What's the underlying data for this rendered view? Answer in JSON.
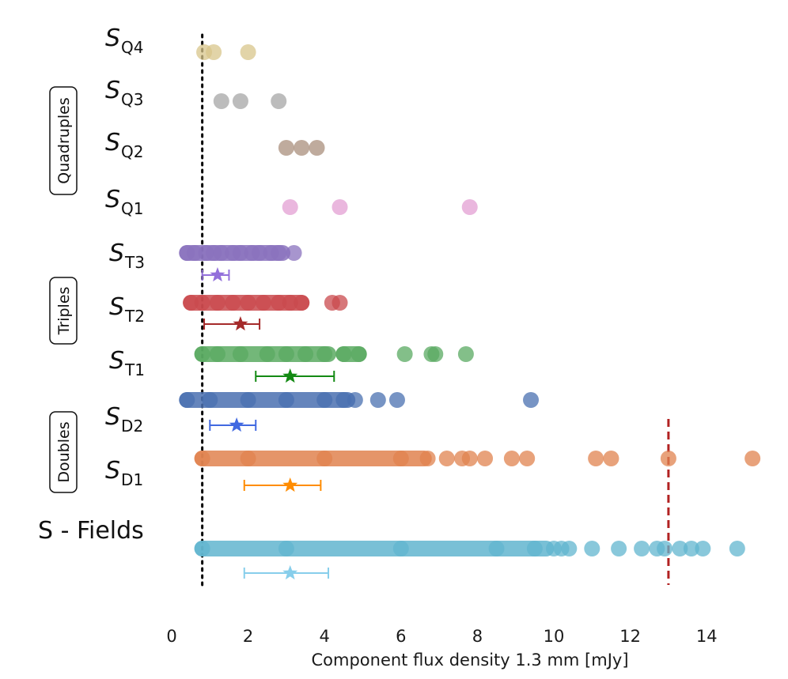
{
  "chart_data": {
    "type": "scatter",
    "xlabel": "Component flux density 1.3 mm [mJy]",
    "xlim": [
      -0.6,
      15.4
    ],
    "xticks": [
      0,
      2,
      4,
      6,
      8,
      10,
      12,
      14
    ],
    "reference_lines": [
      {
        "name": "detection-limit",
        "x": 0.8,
        "style": "dotted",
        "color": "#000000"
      },
      {
        "name": "red-threshold",
        "x": 13.0,
        "style": "dashed",
        "color": "#b22222"
      }
    ],
    "groups": [
      {
        "name": "Quadruples",
        "rows": [
          "Q4",
          "Q3",
          "Q2",
          "Q1"
        ]
      },
      {
        "name": "Triples",
        "rows": [
          "T3",
          "T2",
          "T1"
        ]
      },
      {
        "name": "Doubles",
        "rows": [
          "D2",
          "D1"
        ]
      }
    ],
    "series": [
      {
        "id": "Q4",
        "label_main": "S",
        "label_sub": "Q4",
        "color": "#d8c58b",
        "points": [
          0.85,
          1.1,
          2.0
        ],
        "dense_ranges": []
      },
      {
        "id": "Q3",
        "label_main": "S",
        "label_sub": "Q3",
        "color": "#a6a6a6",
        "points": [
          1.3,
          1.8,
          2.8
        ],
        "dense_ranges": []
      },
      {
        "id": "Q2",
        "label_main": "S",
        "label_sub": "Q2",
        "color": "#aa8f7c",
        "points": [
          3.0,
          3.4,
          3.8
        ],
        "dense_ranges": []
      },
      {
        "id": "Q1",
        "label_main": "S",
        "label_sub": "Q1",
        "color": "#e39fd3",
        "points": [
          3.1,
          4.4,
          7.8
        ],
        "dense_ranges": []
      },
      {
        "id": "T3",
        "label_main": "S",
        "label_sub": "T3",
        "color": "#8a72bd",
        "points": [
          0.4,
          0.6,
          0.9,
          1.1,
          1.3,
          1.6,
          1.8,
          2.1,
          2.3,
          2.6,
          2.8,
          3.2
        ],
        "dense_ranges": [
          [
            0.4,
            2.9
          ]
        ],
        "summary": {
          "value": 1.2,
          "low": 0.8,
          "high": 1.5,
          "color": "#9370db"
        }
      },
      {
        "id": "T2",
        "label_main": "S",
        "label_sub": "T2",
        "color": "#c94a4e",
        "points": [
          0.5,
          0.8,
          1.2,
          1.6,
          2.0,
          2.4,
          2.8,
          3.1,
          3.4,
          4.2,
          4.4
        ],
        "dense_ranges": [
          [
            0.5,
            3.4
          ]
        ],
        "summary": {
          "value": 1.8,
          "low": 0.85,
          "high": 2.3,
          "color": "#a52a2a"
        }
      },
      {
        "id": "T1",
        "label_main": "S",
        "label_sub": "T1",
        "color": "#5aaa62",
        "points": [
          0.8,
          1.2,
          1.8,
          2.5,
          3.0,
          3.5,
          4.0,
          4.5,
          4.9,
          6.1,
          6.8,
          6.9,
          7.7
        ],
        "dense_ranges": [
          [
            0.8,
            4.1
          ],
          [
            4.5,
            4.9
          ]
        ],
        "summary": {
          "value": 3.1,
          "low": 2.2,
          "high": 4.25,
          "color": "#138a13"
        }
      },
      {
        "id": "D2",
        "label_main": "S",
        "label_sub": "D2",
        "color": "#4a70b0",
        "points": [
          0.4,
          1.0,
          2.0,
          3.0,
          4.0,
          4.5,
          4.8,
          5.4,
          5.9,
          9.4
        ],
        "dense_ranges": [
          [
            0.4,
            4.6
          ]
        ],
        "summary": {
          "value": 1.7,
          "low": 1.0,
          "high": 2.2,
          "color": "#4169e1"
        }
      },
      {
        "id": "D1",
        "label_main": "S",
        "label_sub": "D1",
        "color": "#e0834f",
        "points": [
          0.8,
          2.0,
          4.0,
          6.0,
          6.7,
          7.2,
          7.6,
          7.8,
          8.2,
          8.9,
          9.3,
          11.1,
          11.5,
          13.0,
          15.2
        ],
        "dense_ranges": [
          [
            0.8,
            6.6
          ]
        ],
        "summary": {
          "value": 3.1,
          "low": 1.9,
          "high": 3.9,
          "color": "#ff8c00"
        }
      },
      {
        "id": "Fields",
        "label_main": "S - Fields",
        "label_sub": "",
        "color": "#62b5cf",
        "points": [
          0.8,
          3.0,
          6.0,
          8.5,
          9.5,
          10.0,
          10.2,
          10.4,
          11.0,
          11.7,
          12.3,
          12.7,
          12.9,
          13.3,
          13.6,
          13.9,
          14.8
        ],
        "dense_ranges": [
          [
            0.8,
            9.8
          ]
        ],
        "summary": {
          "value": 3.1,
          "low": 1.9,
          "high": 4.1,
          "color": "#87ceeb"
        }
      }
    ]
  }
}
